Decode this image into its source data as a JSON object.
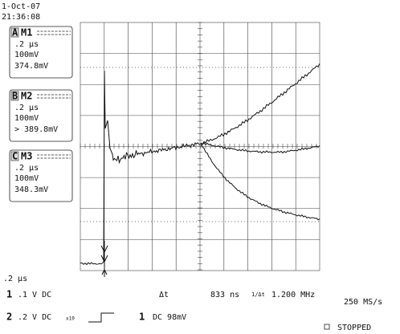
{
  "header": {
    "date": "1-Oct-07",
    "time": "21:36:08"
  },
  "memories": [
    {
      "letter": "A",
      "name": "M1",
      "timebase": ".2 µs",
      "scale": "100mV",
      "reading": "374.8mV"
    },
    {
      "letter": "B",
      "name": "M2",
      "timebase": ".2 µs",
      "scale": "100mV",
      "reading": ">  389.8mV"
    },
    {
      "letter": "C",
      "name": "M3",
      "timebase": ".2 µs",
      "scale": "100mV",
      "reading": "348.3mV"
    }
  ],
  "timebase": ".2 µs",
  "channel1": {
    "number": "1",
    "setting": ".1  V  DC"
  },
  "channel2": {
    "number": "2",
    "setting": ".2  V  DC",
    "probe": "x10"
  },
  "trigger": {
    "source": "1",
    "level": "DC 98mV"
  },
  "cursor": {
    "delta_label": "Δt",
    "delta": "833 ns",
    "inverse_label": "1/Δt",
    "inverse": "1.200 MHz"
  },
  "sample_rate": "250 MS/s",
  "status": "STOPPED"
}
